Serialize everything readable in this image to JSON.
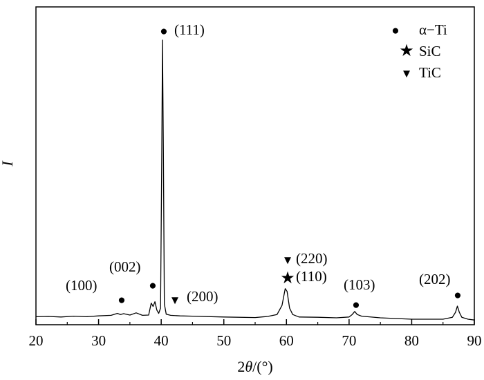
{
  "chart_data": {
    "type": "line",
    "xlabel_prefix": "2",
    "xlabel_theta": "θ",
    "xlabel_suffix": "/(°)",
    "ylabel": "I",
    "xlim": [
      20,
      90
    ],
    "xticks": [
      "20",
      "30",
      "40",
      "50",
      "60",
      "70",
      "80",
      "90"
    ],
    "series": [
      {
        "x": [
          20,
          22,
          24,
          26,
          28,
          30,
          32,
          33,
          33.5,
          34,
          35,
          36,
          37,
          38,
          38.4,
          38.7,
          39,
          39.3,
          39.6,
          39.9,
          40.1,
          40.2,
          40.35,
          40.5,
          40.8,
          41.5,
          43,
          45,
          50,
          55,
          57,
          58.5,
          59.3,
          59.8,
          60.1,
          60.5,
          61,
          62,
          65,
          68,
          70,
          70.5,
          70.9,
          71.3,
          72,
          75,
          80,
          85,
          86.5,
          87,
          87.3,
          87.6,
          88,
          89,
          90
        ],
        "y": [
          0.4,
          0.5,
          0.3,
          0.6,
          0.4,
          0.7,
          0.9,
          1.6,
          1.2,
          1.5,
          1.0,
          1.8,
          0.9,
          1.0,
          5.3,
          4.1,
          5.8,
          2.8,
          1.6,
          3.5,
          60,
          100,
          60,
          5,
          1.3,
          0.9,
          0.7,
          0.6,
          0.3,
          0.1,
          0.5,
          1.2,
          4.5,
          10.5,
          9.5,
          3.5,
          1.2,
          0.3,
          0.2,
          0.0,
          0.3,
          1.2,
          2.3,
          1.2,
          0.6,
          0.0,
          -0.5,
          -0.5,
          0.2,
          2.0,
          4.2,
          2.0,
          0.2,
          -0.5,
          -0.8
        ]
      }
    ],
    "markers": {
      "alpha_ti": "●",
      "sic": "★",
      "tic": "▼"
    },
    "annotations": [
      {
        "text": "(111)",
        "marker": "alpha_ti",
        "x": 40.3
      },
      {
        "text": "(100)",
        "marker": "alpha_ti",
        "x": 33.9
      },
      {
        "text": "(002)",
        "marker": "alpha_ti",
        "x": 38.6
      },
      {
        "text": "(200)",
        "marker": "tic",
        "x": 42
      },
      {
        "text": "(220)",
        "marker": "tic",
        "x": 60
      },
      {
        "text": "(110)",
        "marker": "sic",
        "x": 60
      },
      {
        "text": "(103)",
        "marker": "alpha_ti",
        "x": 71
      },
      {
        "text": "(202)",
        "marker": "alpha_ti",
        "x": 87.3
      }
    ],
    "legend": [
      {
        "marker": "alpha_ti",
        "label": "α−Ti"
      },
      {
        "marker": "sic",
        "label": "SiC"
      },
      {
        "marker": "tic",
        "label": "TiC"
      }
    ],
    "legend_position": "top-right",
    "grid": false
  }
}
